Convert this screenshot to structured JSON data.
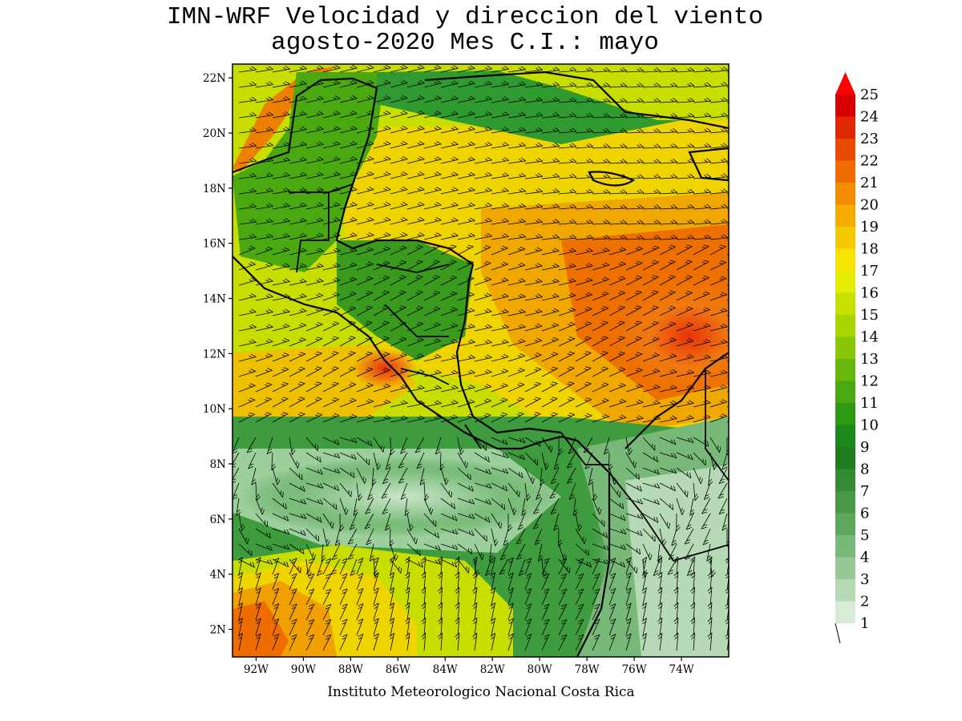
{
  "title": {
    "line1": "IMN-WRF Velocidad y direccion del viento",
    "line2": "agosto-2020 Mes C.I.: mayo"
  },
  "footer": "Instituto Meteorologico Nacional Costa Rica",
  "map": {
    "lon_range": [
      -93.0,
      -72.0
    ],
    "lat_range": [
      1.0,
      22.5
    ],
    "lat_ticks": [
      "2N",
      "4N",
      "6N",
      "8N",
      "10N",
      "12N",
      "14N",
      "16N",
      "18N",
      "20N",
      "22N"
    ],
    "lat_values": [
      2,
      4,
      6,
      8,
      10,
      12,
      14,
      16,
      18,
      20,
      22
    ],
    "lon_ticks": [
      "92W",
      "90W",
      "88W",
      "86W",
      "84W",
      "82W",
      "80W",
      "78W",
      "76W",
      "74W"
    ],
    "lon_values": [
      -92,
      -90,
      -88,
      -86,
      -84,
      -82,
      -80,
      -78,
      -76,
      -74
    ],
    "variable": "wind speed and direction (wind barbs)"
  },
  "colorbar": {
    "labels": [
      "1",
      "2",
      "3",
      "4",
      "5",
      "6",
      "7",
      "8",
      "9",
      "10",
      "11",
      "12",
      "13",
      "14",
      "15",
      "16",
      "17",
      "18",
      "19",
      "20",
      "21",
      "22",
      "23",
      "24",
      "25"
    ],
    "colors": [
      "#ffffff",
      "#d7ebd7",
      "#b5dab5",
      "#96c996",
      "#78b878",
      "#5ea85e",
      "#479847",
      "#338a33",
      "#1f7d1f",
      "#178a17",
      "#2e9a14",
      "#4aa911",
      "#68b80c",
      "#88c707",
      "#a8d400",
      "#c8e000",
      "#e6ec00",
      "#f7e400",
      "#f6c800",
      "#f5ab00",
      "#f28c00",
      "#ee6c00",
      "#e84c00",
      "#e02800",
      "#d80000"
    ],
    "arrow_color": "#ff0000"
  }
}
